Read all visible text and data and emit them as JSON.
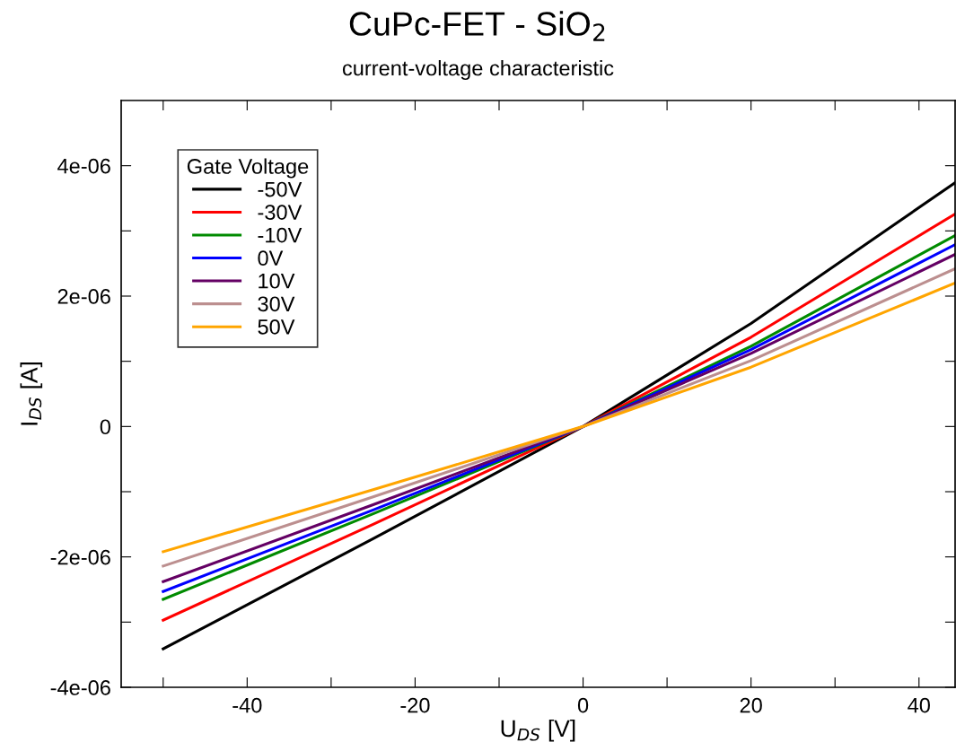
{
  "chart_data": {
    "type": "line",
    "title": "CuPc-FET - SiO$_{2}$",
    "subtitle": "current-voltage characteristic",
    "xlabel": "U$_{DS}$ [V]",
    "ylabel": "I$_{DS}$ [A]",
    "legend_title": "Gate Voltage",
    "x": [
      -50,
      -25,
      0,
      20,
      44.3
    ],
    "series": [
      {
        "name": "-50V",
        "color": "#000000",
        "values": [
          -3.41e-06,
          -1.72e-06,
          0,
          1.58e-06,
          3.74e-06
        ]
      },
      {
        "name": "-30V",
        "color": "#ff0000",
        "values": [
          -2.97e-06,
          -1.5e-06,
          0,
          1.37e-06,
          3.26e-06
        ]
      },
      {
        "name": "-10V",
        "color": "#008b00",
        "values": [
          -2.65e-06,
          -1.34e-06,
          0,
          1.23e-06,
          2.93e-06
        ]
      },
      {
        "name": "0V",
        "color": "#0000ff",
        "values": [
          -2.53e-06,
          -1.28e-06,
          0,
          1.18e-06,
          2.79e-06
        ]
      },
      {
        "name": "10V",
        "color": "#640064",
        "values": [
          -2.38e-06,
          -1.2e-06,
          0,
          1.12e-06,
          2.64e-06
        ]
      },
      {
        "name": "30V",
        "color": "#bc8f8f",
        "values": [
          -2.14e-06,
          -1.08e-06,
          0,
          1.01e-06,
          2.42e-06
        ]
      },
      {
        "name": "50V",
        "color": "#ffa500",
        "values": [
          -1.92e-06,
          -9.7e-07,
          0,
          9.1e-07,
          2.2e-06
        ]
      }
    ],
    "xlim": [
      -55,
      44.3
    ],
    "ylim": [
      -4e-06,
      5e-06
    ],
    "xticks": [
      {
        "value": -50,
        "label": null
      },
      -40,
      {
        "value": -30,
        "label": null
      },
      -20,
      {
        "value": -10,
        "label": null
      },
      0,
      {
        "value": 10,
        "label": null
      },
      20,
      {
        "value": 30,
        "label": null
      },
      40
    ],
    "yticks": [
      {
        "value": -4e-06,
        "label": "-4e-06"
      },
      {
        "value": -3e-06,
        "label": null
      },
      {
        "value": -2e-06,
        "label": "-2e-06"
      },
      {
        "value": -1e-06,
        "label": null
      },
      0,
      {
        "value": 1e-06,
        "label": null
      },
      {
        "value": 2e-06,
        "label": "2e-06"
      },
      {
        "value": 3e-06,
        "label": null
      },
      {
        "value": 4e-06,
        "label": "4e-06"
      }
    ],
    "grid": false,
    "legend": "top left",
    "marker": "none",
    "line_style": "solid"
  }
}
